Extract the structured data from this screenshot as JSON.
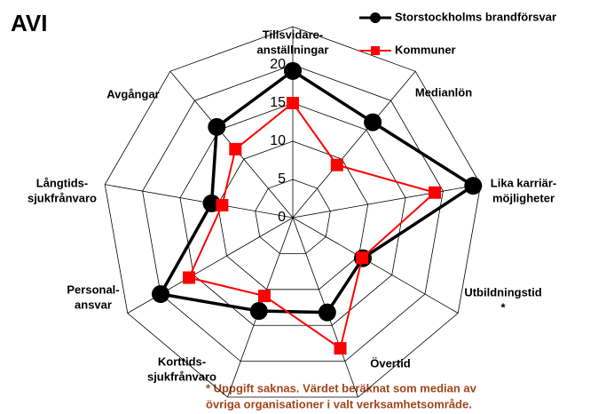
{
  "chart_data": {
    "type": "radar",
    "title": "AVI",
    "categories": [
      [
        "Tillsvidare-",
        "anställningar"
      ],
      [
        "Medianlön"
      ],
      [
        "Lika karriär-",
        "möjligheter"
      ],
      [
        "Utbildningstid",
        "*"
      ],
      [
        "Övertid"
      ],
      [
        "Korttids-",
        "sjukfrånvaro"
      ],
      [
        "Personal-",
        "ansvar"
      ],
      [
        "Långtids-",
        "sjukfrånvaro"
      ],
      [
        "Avgångar"
      ]
    ],
    "series": [
      {
        "name": "Storstockholms brandförsvar",
        "color": "#000000",
        "values": [
          19.2,
          16.3,
          24,
          10.6,
          13.2,
          13,
          20,
          10.8,
          15.5
        ]
      },
      {
        "name": "Kommuner",
        "color": "#ff0000",
        "values": [
          15,
          9,
          18.9,
          10.5,
          18.2,
          10.9,
          15.7,
          9.4,
          11.7
        ]
      }
    ],
    "ylim": [
      0,
      25
    ],
    "yticks": [
      0,
      5,
      10,
      15,
      20
    ],
    "grid": true,
    "footnote": [
      "* Uppgift saknas. Värdet beräknat som median av",
      "övriga organisationer i valt verksamhetsområde."
    ]
  }
}
